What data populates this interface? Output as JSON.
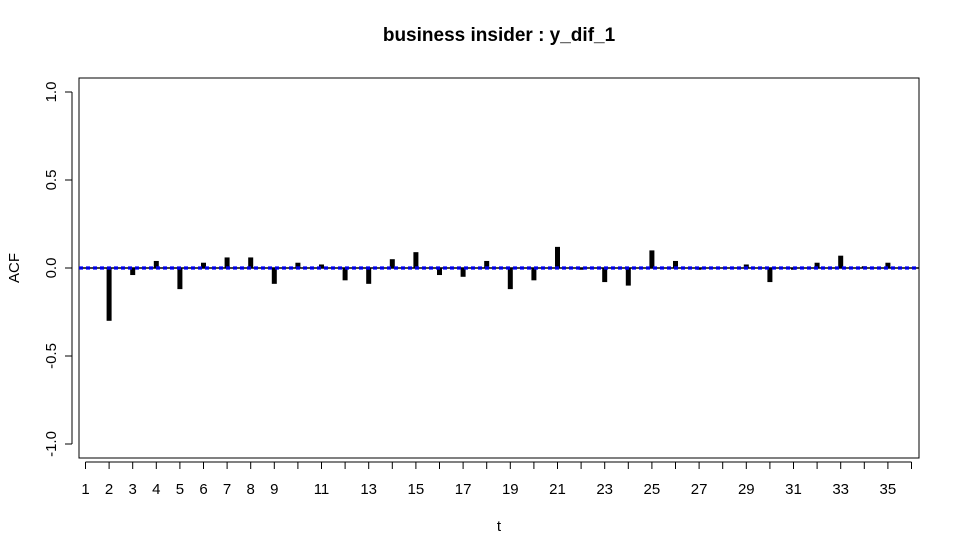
{
  "chart_data": {
    "type": "bar",
    "title": "business insider : y_dif_1",
    "xlabel": "t",
    "ylabel": "ACF",
    "ylim": [
      -1.0,
      1.0
    ],
    "yticks": [
      "-1.0",
      "-0.5",
      "0.0",
      "0.5",
      "1.0"
    ],
    "xlim": [
      0.5,
      36.5
    ],
    "x": [
      1,
      2,
      3,
      4,
      5,
      6,
      7,
      8,
      9,
      10,
      11,
      12,
      13,
      14,
      15,
      16,
      17,
      18,
      19,
      20,
      21,
      22,
      23,
      24,
      25,
      26,
      27,
      28,
      29,
      30,
      31,
      32,
      33,
      34,
      35,
      36
    ],
    "xtick_labels": [
      "1",
      "2",
      "3",
      "4",
      "5",
      "6",
      "7",
      "8",
      "9",
      "11",
      "13",
      "15",
      "17",
      "19",
      "21",
      "23",
      "25",
      "27",
      "29",
      "31",
      "33",
      "35"
    ],
    "values": [
      0.0,
      -0.3,
      -0.04,
      0.04,
      -0.12,
      0.03,
      0.06,
      0.06,
      -0.09,
      0.03,
      0.02,
      -0.07,
      -0.09,
      0.05,
      0.09,
      -0.04,
      -0.05,
      0.04,
      -0.12,
      -0.07,
      0.12,
      -0.01,
      -0.08,
      -0.1,
      0.1,
      0.04,
      -0.01,
      0.0,
      0.02,
      -0.08,
      -0.01,
      0.03,
      0.07,
      0.01,
      0.03,
      0.0
    ],
    "confidence_band": [
      -0.005,
      0.005
    ],
    "grid": false,
    "legend": "none",
    "colors": {
      "bars": "#000000",
      "zero_line": "#000000",
      "confidence_band": "#0000ff"
    }
  }
}
